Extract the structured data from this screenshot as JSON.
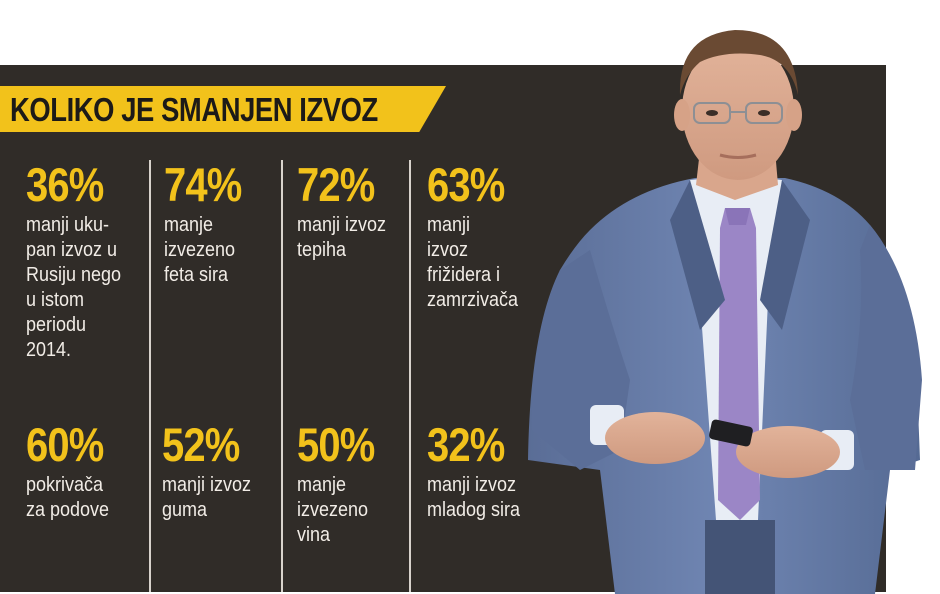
{
  "title": "KOLIKO JE SMANJEN IZVOZ",
  "stats": [
    {
      "pct": "36%",
      "lines": [
        "manji uku-",
        "pan izvoz u",
        "Rusiju nego",
        "u istom",
        "periodu",
        "2014."
      ]
    },
    {
      "pct": "74%",
      "lines": [
        "manje",
        "izvezeno",
        "feta sira"
      ]
    },
    {
      "pct": "72%",
      "lines": [
        "manji izvoz",
        "tepiha"
      ]
    },
    {
      "pct": "63%",
      "lines": [
        "manji",
        "izvoz",
        "frižidera i",
        "zamrzivača"
      ]
    },
    {
      "pct": "60%",
      "lines": [
        "pokrivača",
        "za podove"
      ]
    },
    {
      "pct": "52%",
      "lines": [
        "manji izvoz",
        "guma"
      ]
    },
    {
      "pct": "50%",
      "lines": [
        "manje",
        "izvezeno",
        "vina"
      ]
    },
    {
      "pct": "32%",
      "lines": [
        "manji izvoz",
        "mladog sira"
      ]
    }
  ],
  "colors": {
    "panel": "#302c28",
    "accent": "#f2c21b",
    "text": "#f1ece6"
  },
  "photo": "man-in-suit-photo"
}
